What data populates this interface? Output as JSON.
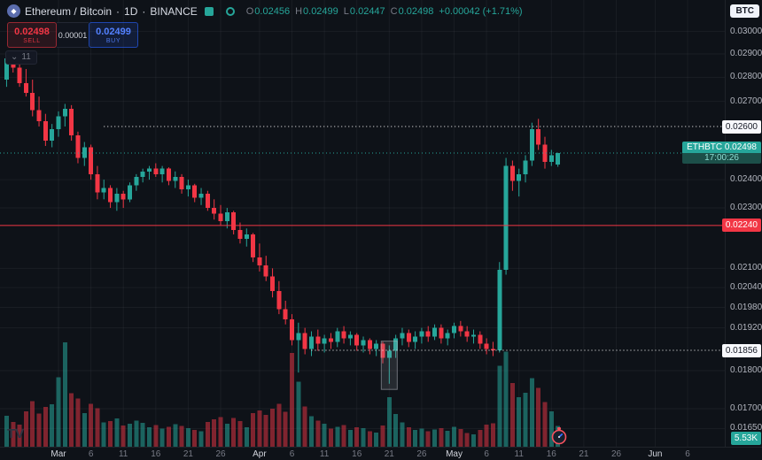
{
  "header": {
    "symbol": "Ethereum / Bitcoin",
    "sep": "·",
    "interval": "1D",
    "exchange": "BINANCE",
    "currency_button": "BTC",
    "ohlc": {
      "o_label": "O",
      "o": "0.02456",
      "h_label": "H",
      "h": "0.02499",
      "l_label": "L",
      "l": "0.02447",
      "c_label": "C",
      "c": "0.02498",
      "change": "+0.00042 (+1.71%)"
    }
  },
  "trade": {
    "sell_price": "0.02498",
    "sell_label": "SELL",
    "spread": "0.00001",
    "buy_price": "0.02499",
    "buy_label": "BUY"
  },
  "indicators": {
    "count": "11"
  },
  "icons": {
    "chevron_down": "⌄",
    "eth_glyph": "◆"
  },
  "watermark": "TV",
  "chart_data": {
    "type": "candlestick",
    "title": "Ethereum / Bitcoin · 1D · BINANCE",
    "symbol": "ETHBTC",
    "interval": "1D",
    "scale": "logarithmic",
    "ohlc_current": {
      "open": 0.02456,
      "high": 0.02499,
      "low": 0.02447,
      "close": 0.02498,
      "change": "+0.00042 (+1.71%)"
    },
    "y_ticks": [
      "0.03000",
      "0.02900",
      "0.02800",
      "0.02700",
      "0.02400",
      "0.02300",
      "0.02100",
      "0.02040",
      "0.01980",
      "0.01920",
      "0.01800",
      "0.01700",
      "0.01650"
    ],
    "x_ticks": [
      {
        "label": "Mar",
        "day": 0,
        "major": true
      },
      {
        "label": "6",
        "day": 5,
        "major": false
      },
      {
        "label": "11",
        "day": 10,
        "major": false
      },
      {
        "label": "16",
        "day": 15,
        "major": false
      },
      {
        "label": "21",
        "day": 20,
        "major": false
      },
      {
        "label": "26",
        "day": 25,
        "major": false
      },
      {
        "label": "Apr",
        "day": 31,
        "major": true
      },
      {
        "label": "6",
        "day": 36,
        "major": false
      },
      {
        "label": "11",
        "day": 41,
        "major": false
      },
      {
        "label": "16",
        "day": 46,
        "major": false
      },
      {
        "label": "21",
        "day": 51,
        "major": false
      },
      {
        "label": "26",
        "day": 56,
        "major": false
      },
      {
        "label": "May",
        "day": 61,
        "major": true
      },
      {
        "label": "6",
        "day": 66,
        "major": false
      },
      {
        "label": "11",
        "day": 71,
        "major": false
      },
      {
        "label": "16",
        "day": 76,
        "major": false
      },
      {
        "label": "21",
        "day": 81,
        "major": false
      },
      {
        "label": "26",
        "day": 86,
        "major": false
      },
      {
        "label": "Jun",
        "day": 92,
        "major": true
      },
      {
        "label": "6",
        "day": 97,
        "major": false
      }
    ],
    "start_day_offset": -8,
    "volume_unit": "K",
    "last_volume_label": "5.53K",
    "candles": [
      [
        0.0279,
        0.029,
        0.0276,
        0.0288,
        8.2
      ],
      [
        0.0288,
        0.02915,
        0.0282,
        0.0284,
        6.5
      ],
      [
        0.0284,
        0.0288,
        0.0276,
        0.02775,
        5.8
      ],
      [
        0.02775,
        0.02835,
        0.0272,
        0.02735,
        9.4
      ],
      [
        0.02735,
        0.0279,
        0.0264,
        0.02665,
        12.1
      ],
      [
        0.02665,
        0.0272,
        0.026,
        0.0262,
        8.8
      ],
      [
        0.0262,
        0.0265,
        0.02525,
        0.02545,
        10.5
      ],
      [
        0.02545,
        0.0261,
        0.0252,
        0.0259,
        11.2
      ],
      [
        0.0259,
        0.0266,
        0.0256,
        0.0264,
        18.4
      ],
      [
        0.0264,
        0.0269,
        0.026,
        0.0267,
        27.6
      ],
      [
        0.0267,
        0.02685,
        0.02545,
        0.02565,
        14.2
      ],
      [
        0.02565,
        0.0258,
        0.0246,
        0.0248,
        12.8
      ],
      [
        0.0248,
        0.0254,
        0.0245,
        0.0252,
        8.9
      ],
      [
        0.0252,
        0.0253,
        0.024,
        0.0242,
        11.3
      ],
      [
        0.0242,
        0.0245,
        0.0233,
        0.02355,
        10.2
      ],
      [
        0.02355,
        0.024,
        0.0233,
        0.0237,
        6.4
      ],
      [
        0.0237,
        0.0238,
        0.023,
        0.0232,
        6.8
      ],
      [
        0.0232,
        0.0237,
        0.0229,
        0.0235,
        7.5
      ],
      [
        0.0235,
        0.0236,
        0.023,
        0.0233,
        5.6
      ],
      [
        0.0233,
        0.0239,
        0.0232,
        0.0238,
        6.1
      ],
      [
        0.0238,
        0.0242,
        0.0236,
        0.0241,
        6.9
      ],
      [
        0.0241,
        0.0244,
        0.0239,
        0.0243,
        6.3
      ],
      [
        0.0243,
        0.0245,
        0.024,
        0.0244,
        5.2
      ],
      [
        0.0244,
        0.0246,
        0.0241,
        0.0242,
        5.7
      ],
      [
        0.0242,
        0.0245,
        0.0239,
        0.0244,
        4.8
      ],
      [
        0.0244,
        0.02445,
        0.0238,
        0.02395,
        5.3
      ],
      [
        0.02395,
        0.0243,
        0.0237,
        0.0241,
        6.0
      ],
      [
        0.0241,
        0.0242,
        0.0235,
        0.02365,
        5.5
      ],
      [
        0.02365,
        0.024,
        0.0234,
        0.0238,
        4.9
      ],
      [
        0.0238,
        0.02385,
        0.0232,
        0.02335,
        4.4
      ],
      [
        0.02335,
        0.0237,
        0.0231,
        0.0235,
        4.1
      ],
      [
        0.0235,
        0.0236,
        0.0229,
        0.023,
        6.6
      ],
      [
        0.023,
        0.0233,
        0.0226,
        0.0228,
        7.2
      ],
      [
        0.0228,
        0.0231,
        0.0224,
        0.02255,
        7.8
      ],
      [
        0.02255,
        0.023,
        0.0223,
        0.02285,
        6.1
      ],
      [
        0.02285,
        0.0229,
        0.0221,
        0.02225,
        7.6
      ],
      [
        0.02225,
        0.0225,
        0.0218,
        0.02195,
        6.8
      ],
      [
        0.02195,
        0.0223,
        0.0217,
        0.0221,
        5.2
      ],
      [
        0.0221,
        0.02215,
        0.0212,
        0.02135,
        8.9
      ],
      [
        0.02135,
        0.0218,
        0.0209,
        0.0211,
        9.6
      ],
      [
        0.0211,
        0.0214,
        0.0206,
        0.02075,
        8.4
      ],
      [
        0.02075,
        0.021,
        0.0201,
        0.0203,
        10.1
      ],
      [
        0.0203,
        0.0206,
        0.0196,
        0.01975,
        11.4
      ],
      [
        0.01975,
        0.02,
        0.0193,
        0.01945,
        9.2
      ],
      [
        0.01945,
        0.0196,
        0.0187,
        0.01885,
        24.8
      ],
      [
        0.01885,
        0.01935,
        0.01795,
        0.01905,
        17.2
      ],
      [
        0.01905,
        0.0192,
        0.01845,
        0.0186,
        10.6
      ],
      [
        0.0186,
        0.0191,
        0.0184,
        0.01895,
        8.1
      ],
      [
        0.01895,
        0.01915,
        0.01855,
        0.01875,
        6.9
      ],
      [
        0.01875,
        0.019,
        0.0185,
        0.0189,
        6.1
      ],
      [
        0.0189,
        0.01905,
        0.0186,
        0.0188,
        4.8
      ],
      [
        0.0188,
        0.0192,
        0.01865,
        0.0191,
        5.3
      ],
      [
        0.0191,
        0.01925,
        0.01875,
        0.0189,
        5.7
      ],
      [
        0.0189,
        0.0191,
        0.0187,
        0.019,
        4.4
      ],
      [
        0.019,
        0.01905,
        0.01855,
        0.0187,
        5.2
      ],
      [
        0.0187,
        0.01895,
        0.0185,
        0.01885,
        4.9
      ],
      [
        0.01885,
        0.0189,
        0.01845,
        0.0186,
        4.1
      ],
      [
        0.0186,
        0.01885,
        0.0184,
        0.01875,
        3.7
      ],
      [
        0.01875,
        0.0188,
        0.0182,
        0.01835,
        5.6
      ],
      [
        0.01835,
        0.0187,
        0.01765,
        0.01855,
        13.1
      ],
      [
        0.01855,
        0.019,
        0.01835,
        0.0189,
        8.6
      ],
      [
        0.0189,
        0.0192,
        0.0187,
        0.01905,
        6.4
      ],
      [
        0.01905,
        0.01915,
        0.01865,
        0.0188,
        5.2
      ],
      [
        0.0188,
        0.0191,
        0.0186,
        0.01895,
        4.5
      ],
      [
        0.01895,
        0.0192,
        0.01875,
        0.0191,
        4.8
      ],
      [
        0.0191,
        0.01925,
        0.0188,
        0.01895,
        4.1
      ],
      [
        0.01895,
        0.0193,
        0.01885,
        0.0192,
        4.6
      ],
      [
        0.0192,
        0.0193,
        0.01875,
        0.0189,
        4.9
      ],
      [
        0.0189,
        0.01915,
        0.0187,
        0.01905,
        4.2
      ],
      [
        0.01905,
        0.01935,
        0.0189,
        0.01925,
        5.3
      ],
      [
        0.01925,
        0.0194,
        0.01895,
        0.0191,
        4.7
      ],
      [
        0.0191,
        0.01925,
        0.0188,
        0.01895,
        3.6
      ],
      [
        0.01895,
        0.01915,
        0.01875,
        0.019,
        3.3
      ],
      [
        0.019,
        0.0191,
        0.0186,
        0.01875,
        4.4
      ],
      [
        0.01875,
        0.0189,
        0.01845,
        0.0186,
        5.8
      ],
      [
        0.0186,
        0.0188,
        0.0184,
        0.01856,
        6.2
      ],
      [
        0.01856,
        0.0212,
        0.0185,
        0.02095,
        21.4
      ],
      [
        0.02095,
        0.0248,
        0.0208,
        0.0245,
        25.2
      ],
      [
        0.0245,
        0.0247,
        0.0236,
        0.02395,
        16.8
      ],
      [
        0.02395,
        0.0244,
        0.0234,
        0.0242,
        13.1
      ],
      [
        0.0242,
        0.0249,
        0.0239,
        0.0247,
        14.3
      ],
      [
        0.0247,
        0.02615,
        0.0245,
        0.0259,
        18.1
      ],
      [
        0.0259,
        0.0263,
        0.0251,
        0.0253,
        15.6
      ],
      [
        0.0253,
        0.0256,
        0.0244,
        0.02465,
        11.8
      ],
      [
        0.02465,
        0.0251,
        0.0245,
        0.0249,
        9.4
      ],
      [
        0.02456,
        0.02499,
        0.02447,
        0.02498,
        5.53
      ]
    ],
    "levels": [
      {
        "price": 0.026,
        "label": "0.02600",
        "style": "dotted",
        "color": "#ffffff",
        "from_day": 7,
        "badge_bg": "#f8f9fd",
        "badge_fg": "#131722"
      },
      {
        "price": 0.0224,
        "label": "0.02240",
        "style": "solid",
        "color": "#f23645",
        "from_day": -99,
        "badge_bg": "#f23645",
        "badge_fg": "#ffffff"
      },
      {
        "price": 0.01856,
        "label": "0.01856",
        "style": "dotted",
        "color": "#ffffff",
        "from_day": 39,
        "badge_bg": "#f8f9fd",
        "badge_fg": "#131722"
      }
    ],
    "current_price": {
      "value": 0.02498,
      "badge_line1": "ETHBTC  0.02498",
      "badge_line2": "17:00:26",
      "color": "#26a69a"
    },
    "selection": {
      "day": 51,
      "price_top": 0.01882,
      "price_bottom": 0.0175
    },
    "colors": {
      "up": "#26a69a",
      "down": "#f23645",
      "vol_up": "rgba(38,166,154,0.55)",
      "vol_down": "rgba(242,54,69,0.5)",
      "grid": "rgba(240,243,250,0.05)"
    }
  }
}
